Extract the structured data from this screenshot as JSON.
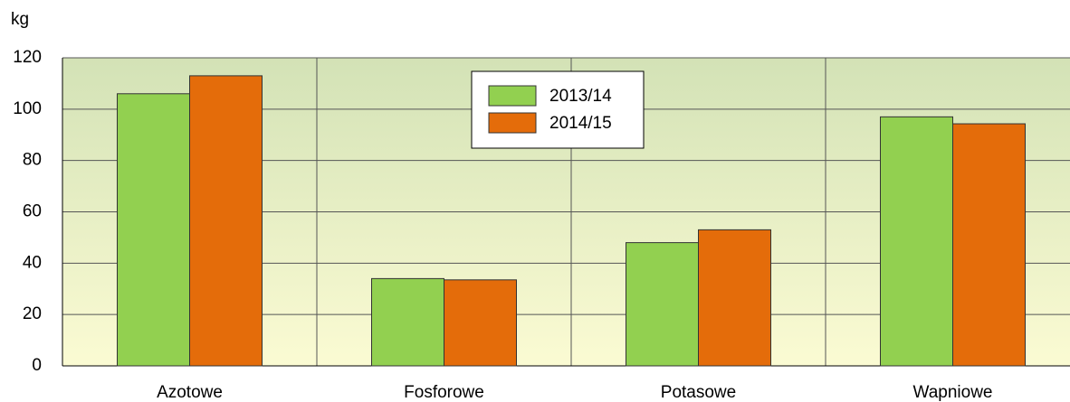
{
  "chart_data": {
    "type": "bar",
    "y_label": "kg",
    "categories": [
      "Azotowe",
      "Fosforowe",
      "Potasowe",
      "Wapniowe"
    ],
    "series": [
      {
        "name": "2013/14",
        "color": "#92d050",
        "values": [
          106,
          34,
          48,
          97
        ]
      },
      {
        "name": "2014/15",
        "color": "#e46c0a",
        "values": [
          113,
          33.5,
          53,
          94.3
        ]
      }
    ],
    "ylim": [
      0,
      120
    ],
    "yticks": [
      0,
      20,
      40,
      60,
      80,
      100,
      120
    ],
    "grid": true,
    "legend": "top"
  }
}
